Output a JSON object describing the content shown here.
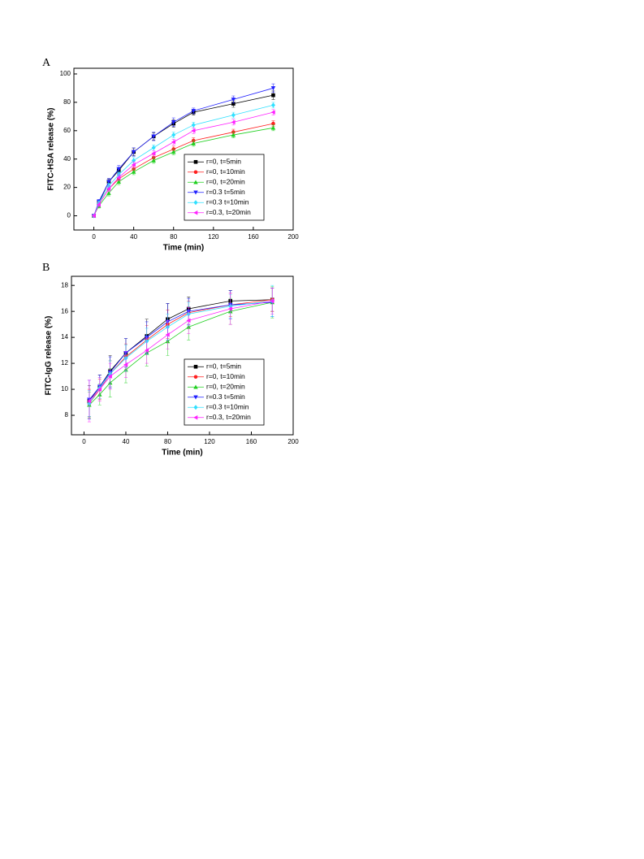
{
  "chart_data": [
    {
      "type": "line",
      "panel": "A",
      "xlabel": "Time (min)",
      "ylabel": "FITC-HSA release (%)",
      "x": [
        0,
        5,
        15,
        25,
        40,
        60,
        80,
        100,
        140,
        180
      ],
      "xlim": [
        -20,
        200
      ],
      "xticks": [
        0,
        40,
        80,
        120,
        160,
        200
      ],
      "ylim": [
        -10,
        104
      ],
      "yticks": [
        0,
        20,
        40,
        60,
        80,
        100
      ],
      "legend": "lower right",
      "series": [
        {
          "name": "r=0,   t=5min",
          "color": "#000000",
          "marker": "square",
          "values": [
            0,
            9,
            24,
            32,
            45,
            56,
            65,
            73,
            79,
            85
          ],
          "errors": [
            1,
            1.5,
            2,
            2,
            2.5,
            2.5,
            2.5,
            2,
            2.5,
            3
          ]
        },
        {
          "name": "r=0,   t=10min",
          "color": "#ff2020",
          "marker": "circle",
          "values": [
            0,
            8,
            19,
            26,
            33,
            41,
            47,
            53,
            59,
            65
          ],
          "errors": [
            1,
            1.5,
            2,
            2,
            2,
            2,
            2,
            2,
            2,
            2
          ]
        },
        {
          "name": "r=0,   t=20min",
          "color": "#20d020",
          "marker": "triangle-up",
          "values": [
            0,
            7,
            16,
            24,
            31,
            39,
            45,
            51,
            57,
            62
          ],
          "errors": [
            1,
            1.5,
            2,
            2,
            2,
            2,
            2,
            2,
            2,
            2
          ]
        },
        {
          "name": "r=0.3  t=5min",
          "color": "#2020ff",
          "marker": "triangle-down",
          "values": [
            0,
            10,
            24,
            33,
            45,
            56,
            66,
            74,
            82,
            90
          ],
          "errors": [
            1,
            1.5,
            2.5,
            2.5,
            3,
            3,
            3,
            2,
            2.5,
            3
          ]
        },
        {
          "name": "r=0.3 t=10min",
          "color": "#30e0ff",
          "marker": "diamond",
          "values": [
            0,
            9,
            21,
            29,
            39,
            48,
            57,
            64,
            71,
            78
          ],
          "errors": [
            1,
            1.5,
            2,
            2,
            2,
            2,
            2,
            2,
            2,
            2
          ]
        },
        {
          "name": "r=0.3, t=20min",
          "color": "#ff20ff",
          "marker": "triangle-left",
          "values": [
            0,
            8,
            19,
            27,
            36,
            44,
            52,
            60,
            66,
            73
          ],
          "errors": [
            1,
            1.5,
            2,
            2,
            2,
            2,
            2,
            2,
            2,
            2
          ]
        }
      ]
    },
    {
      "type": "line",
      "panel": "B",
      "xlabel": "Time (min)",
      "ylabel": "FITC-IgG release (%)",
      "x": [
        5,
        15,
        25,
        40,
        60,
        80,
        100,
        140,
        180
      ],
      "xlim": [
        -12,
        200
      ],
      "xticks": [
        0,
        40,
        80,
        120,
        160,
        200
      ],
      "ylim": [
        6.5,
        18.7
      ],
      "yticks": [
        8,
        10,
        12,
        14,
        16,
        18
      ],
      "legend": "lower right",
      "series": [
        {
          "name": "r=0,   t=5min",
          "color": "#000000",
          "marker": "square",
          "values": [
            9.1,
            10.2,
            11.4,
            12.8,
            14.1,
            15.4,
            16.2,
            16.8,
            16.9
          ],
          "errors": [
            1.2,
            0.9,
            1.2,
            1.1,
            1.3,
            1.2,
            0.9,
            0.8,
            0.9
          ]
        },
        {
          "name": "r=0,   t=10min",
          "color": "#ff2020",
          "marker": "circle",
          "values": [
            8.9,
            10.0,
            11.2,
            12.5,
            13.8,
            15.0,
            15.9,
            16.5,
            16.9
          ],
          "errors": [
            1.1,
            0.8,
            1.0,
            1.0,
            1.1,
            1.1,
            0.9,
            0.9,
            0.9
          ]
        },
        {
          "name": "r=0,   t=20min",
          "color": "#20d020",
          "marker": "triangle-up",
          "values": [
            8.8,
            9.6,
            10.5,
            11.5,
            12.8,
            13.7,
            14.8,
            16.0,
            16.7
          ],
          "errors": [
            1.0,
            0.8,
            1.1,
            1.0,
            1.0,
            1.1,
            1.0,
            1.0,
            1.2
          ]
        },
        {
          "name": "r=0.3  t=5min",
          "color": "#2020ff",
          "marker": "triangle-down",
          "values": [
            9.2,
            10.2,
            11.3,
            12.8,
            14.0,
            15.2,
            16.0,
            16.5,
            16.7
          ],
          "errors": [
            1.5,
            0.9,
            1.2,
            1.1,
            1.2,
            1.4,
            1.0,
            1.1,
            1.1
          ]
        },
        {
          "name": "r=0.3 t=10min",
          "color": "#30e0ff",
          "marker": "diamond",
          "values": [
            8.9,
            10.1,
            11.2,
            12.4,
            13.7,
            14.8,
            15.8,
            16.4,
            16.8
          ],
          "errors": [
            1.0,
            0.8,
            1.0,
            1.0,
            1.0,
            1.0,
            0.9,
            0.9,
            1.2
          ]
        },
        {
          "name": "r=0.3, t=20min",
          "color": "#ff20ff",
          "marker": "triangle-left",
          "values": [
            9.1,
            10.0,
            11.0,
            11.9,
            13.0,
            14.2,
            15.3,
            16.2,
            16.8
          ],
          "errors": [
            1.6,
            0.9,
            1.0,
            1.0,
            1.0,
            1.1,
            1.0,
            1.2,
            1.0
          ]
        }
      ]
    }
  ]
}
